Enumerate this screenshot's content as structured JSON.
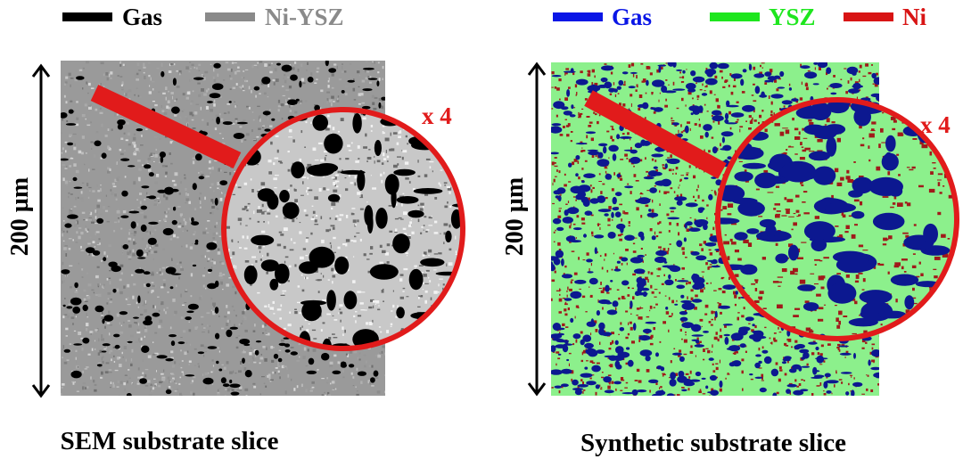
{
  "legend_left": {
    "items": [
      {
        "label": "Gas",
        "swatch_color": "#000000",
        "text_color": "#000000"
      },
      {
        "label": "Ni-YSZ",
        "swatch_color": "#8a8a8a",
        "text_color": "#8a8a8a"
      }
    ]
  },
  "legend_right": {
    "items": [
      {
        "label": "Gas",
        "swatch_color": "#0a16e6",
        "text_color": "#0a16e6"
      },
      {
        "label": "YSZ",
        "swatch_color": "#1ee61e",
        "text_color": "#1ee61e"
      },
      {
        "label": "Ni",
        "swatch_color": "#d81414",
        "text_color": "#d81414"
      }
    ]
  },
  "left_panel": {
    "scale_label": "200 µm",
    "zoom_label": "x 4",
    "caption": "SEM substrate slice"
  },
  "right_panel": {
    "scale_label": "200 µm",
    "zoom_label": "x 4",
    "caption": "Synthetic substrate slice"
  },
  "colors": {
    "zoom_ring": "#e11b1b",
    "sem_gas": "#000000",
    "sem_matrix": "#8a8a8a",
    "syn_gas": "#0c1890",
    "syn_ysz": "#8cf08c",
    "syn_ni": "#a01a1a"
  }
}
